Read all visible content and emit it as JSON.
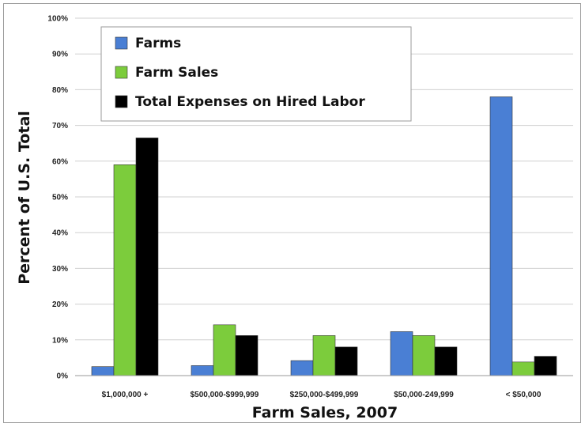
{
  "chart_data": {
    "type": "bar",
    "title": "",
    "xlabel": "Farm Sales, 2007",
    "ylabel": "Percent of U.S. Total",
    "ylim": [
      0,
      100
    ],
    "ytick_step": 10,
    "ytick_labels": [
      "0%",
      "10%",
      "20%",
      "30%",
      "40%",
      "50%",
      "60%",
      "70%",
      "80%",
      "90%",
      "100%"
    ],
    "grid": true,
    "legend_position": "top-left",
    "categories": [
      "$1,000,000 +",
      "$500,000-$999,999",
      "$250,000-$499,999",
      "$50,000-249,999",
      "< $50,000"
    ],
    "series": [
      {
        "name": "Farms",
        "color": "#4a7fd4",
        "values": [
          2.5,
          2.8,
          4.2,
          12.3,
          78
        ]
      },
      {
        "name": "Farm Sales",
        "color": "#7ccc3c",
        "values": [
          59,
          14.2,
          11.2,
          11.2,
          3.8
        ]
      },
      {
        "name": "Total Expenses on Hired Labor",
        "color": "#000000",
        "values": [
          66.5,
          11.2,
          8,
          8,
          5.4
        ]
      }
    ]
  }
}
